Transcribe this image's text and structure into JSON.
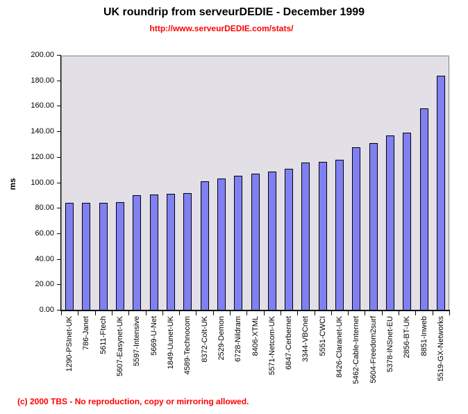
{
  "header": {
    "title": "UK roundrip from serveurDEDIE - December 1999",
    "subtitle_url": "http://www.serveurDEDIE.com/stats/"
  },
  "footer": {
    "copyright": "(c) 2000 TBS - No reproduction, copy or mirroring allowed."
  },
  "colors": {
    "bar_fill": "#8080f2",
    "bar_border": "#000000",
    "plot_background": "#e2dfe7",
    "plot_border": "#848284",
    "axis": "#000000",
    "subtitle_text": "#ff0000",
    "footer_text": "#ff0000",
    "title_text": "#000000"
  },
  "chart_data": {
    "type": "bar",
    "title": "UK roundrip from serveurDEDIE - December 1999",
    "subtitle": "http://www.serveurDEDIE.com/stats/",
    "xlabel": "",
    "ylabel": "ms",
    "ylim": [
      0,
      200
    ],
    "ytick_step": 20,
    "ytick_labels": [
      "0.00",
      "20.00",
      "40.00",
      "60.00",
      "80.00",
      "100.00",
      "120.00",
      "140.00",
      "160.00",
      "180.00",
      "200.00"
    ],
    "grid": false,
    "legend": false,
    "x_labels_rotated_degrees": 90,
    "categories": [
      "1290-PSInet-UK",
      "786-Janet",
      "5611-Ftech",
      "5607-Easynet-UK",
      "5597-Intensive",
      "5669-U-Net",
      "1849-Uunet-UK",
      "4589-Technocom",
      "8372-Colt-UK",
      "2529-Demon",
      "6728-Nildram",
      "8406-XTML",
      "5571-Netcom-UK",
      "6847-Cerbernet",
      "3344-VBCnet",
      "5551-CWCI",
      "8426-Claranet-UK",
      "5462-Cable-Internet",
      "5604-Freedom2surf",
      "5378-INSnet-EU",
      "2856-BT-UK",
      "8851-Inweb",
      "5519-GX-Networks"
    ],
    "values": [
      84.2,
      84.7,
      84.4,
      85.1,
      90.2,
      90.8,
      91.5,
      92.2,
      101.3,
      103.5,
      105.7,
      107.3,
      109.0,
      111.2,
      116.2,
      116.8,
      118.3,
      128.1,
      131.5,
      137.5,
      139.7,
      158.8,
      184.3
    ]
  }
}
